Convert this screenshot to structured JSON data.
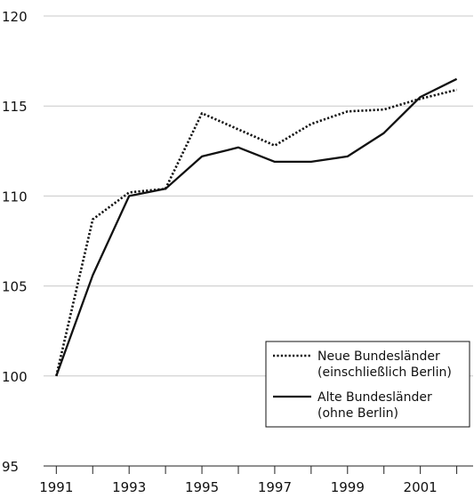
{
  "chart_data": {
    "type": "line",
    "x": [
      1991,
      1992,
      1993,
      1994,
      1995,
      1996,
      1997,
      1998,
      1999,
      2000,
      2001,
      2002
    ],
    "xticks": [
      "1991",
      "1993",
      "1995",
      "1997",
      "1999",
      "2001"
    ],
    "yticks": [
      "95",
      "100",
      "105",
      "110",
      "115",
      "120"
    ],
    "ylim": [
      95,
      120
    ],
    "xlim": [
      1990.65,
      2002.45
    ],
    "grid": "horizontal",
    "legend_position": "bottom-right",
    "series": [
      {
        "name": "Neue Bundesländer (einschließlich Berlin)",
        "legend_lines": [
          "Neue Bundesländer",
          "(einschließlich Berlin)"
        ],
        "style": "dotted",
        "values": [
          100.0,
          108.7,
          110.2,
          110.4,
          114.6,
          113.7,
          112.8,
          114.0,
          114.7,
          114.8,
          115.4,
          115.9
        ]
      },
      {
        "name": "Alte Bundesländer (ohne Berlin)",
        "legend_lines": [
          "Alte Bundesländer",
          "(ohne Berlin)"
        ],
        "style": "solid",
        "values": [
          100.0,
          105.6,
          110.0,
          110.4,
          112.2,
          112.7,
          111.9,
          111.9,
          112.2,
          113.5,
          115.5,
          116.5
        ]
      }
    ]
  }
}
